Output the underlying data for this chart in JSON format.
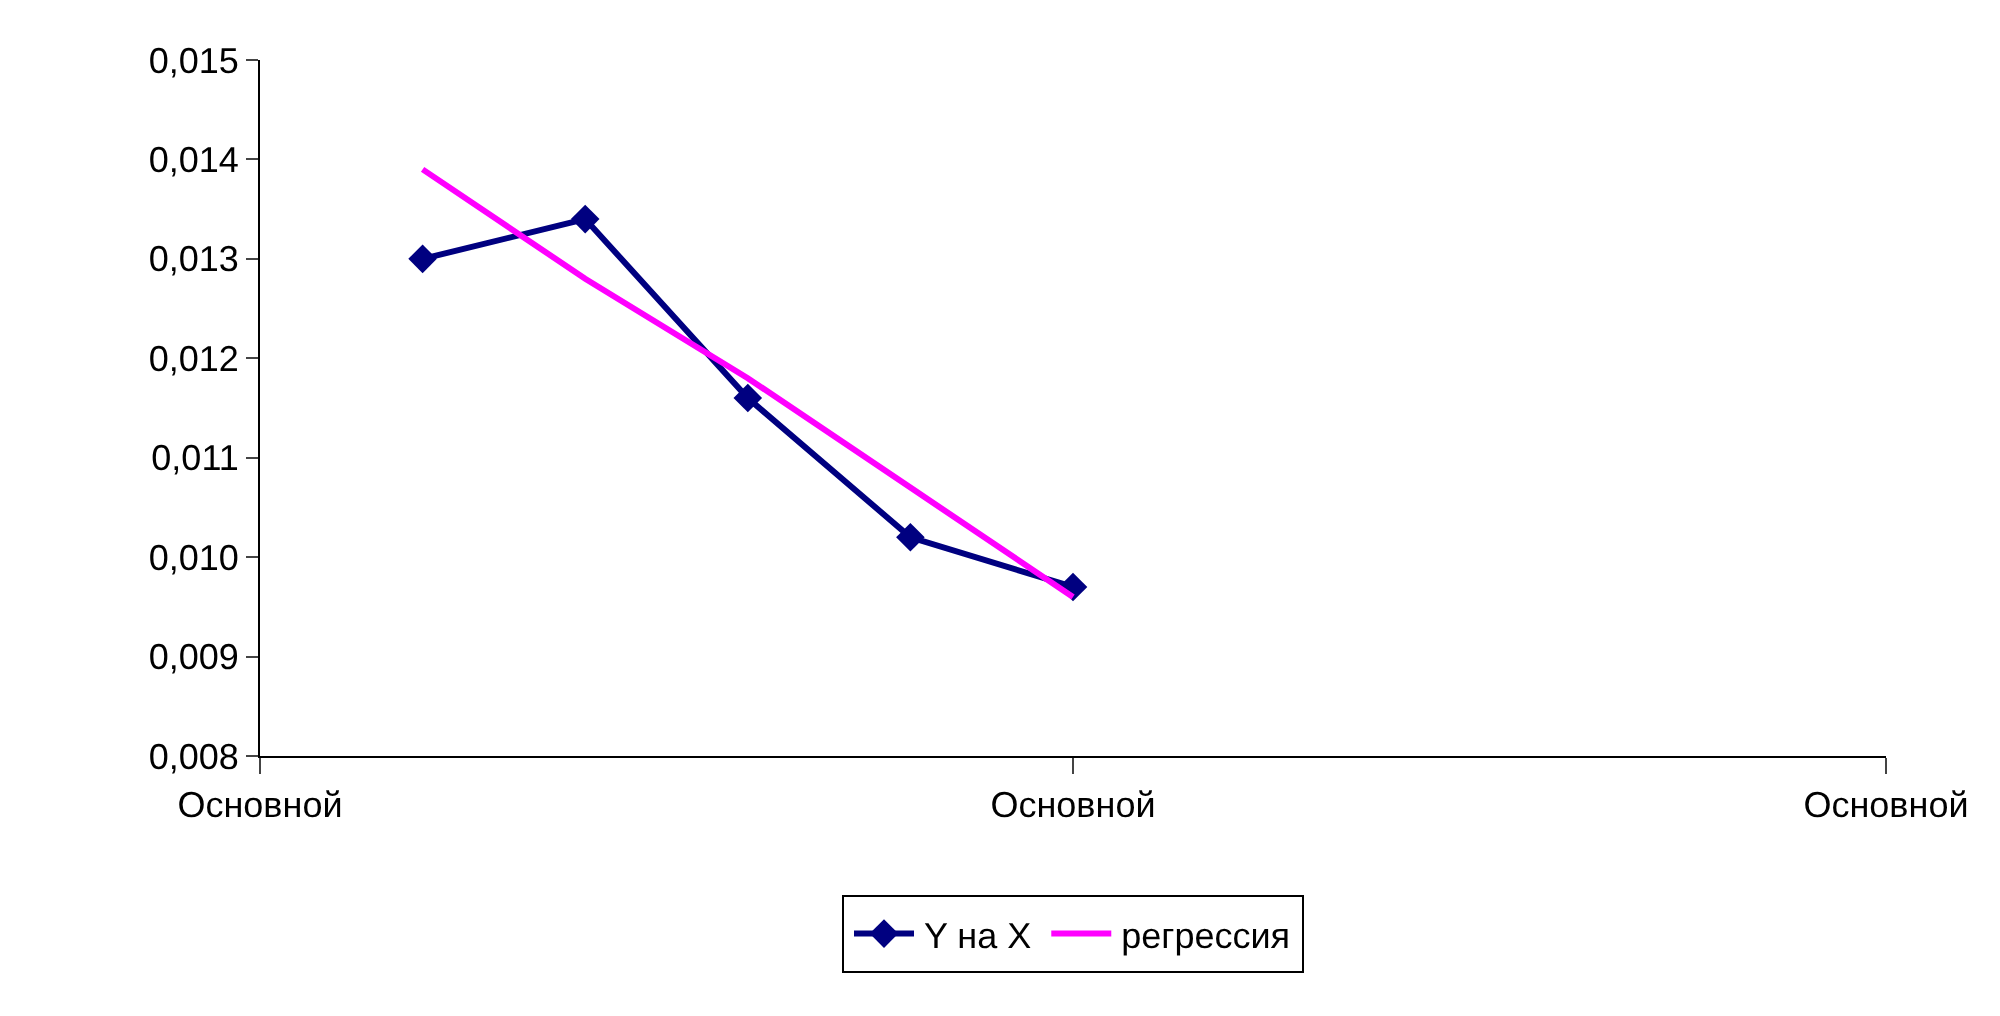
{
  "chart_data": {
    "type": "line",
    "categories": [
      "Основной",
      null,
      null,
      null,
      null,
      "Основной",
      null,
      null,
      null,
      null,
      "Основной"
    ],
    "ylim": [
      0.008,
      0.015
    ],
    "yticks": [
      {
        "value": 0.008,
        "label": "0,008"
      },
      {
        "value": 0.009,
        "label": "0,009"
      },
      {
        "value": 0.01,
        "label": "0,010"
      },
      {
        "value": 0.011,
        "label": "0,011"
      },
      {
        "value": 0.012,
        "label": "0,012"
      },
      {
        "value": 0.013,
        "label": "0,013"
      },
      {
        "value": 0.014,
        "label": "0,014"
      },
      {
        "value": 0.015,
        "label": "0,015"
      }
    ],
    "series": [
      {
        "name": "Y на X",
        "color": "#000080",
        "values": [
          null,
          0.013,
          0.0134,
          0.0116,
          0.0102,
          0.0097,
          null,
          null,
          null,
          null,
          null
        ],
        "marker": "diamond"
      },
      {
        "name": "регрессия",
        "color": "#ff00ff",
        "type": "line",
        "values": [
          null,
          0.0139,
          0.0128,
          0.0118,
          0.0107,
          0.0096,
          null,
          null,
          null,
          null,
          null
        ],
        "marker": "none"
      }
    ],
    "legend": "bottom",
    "line_style": "solid"
  }
}
